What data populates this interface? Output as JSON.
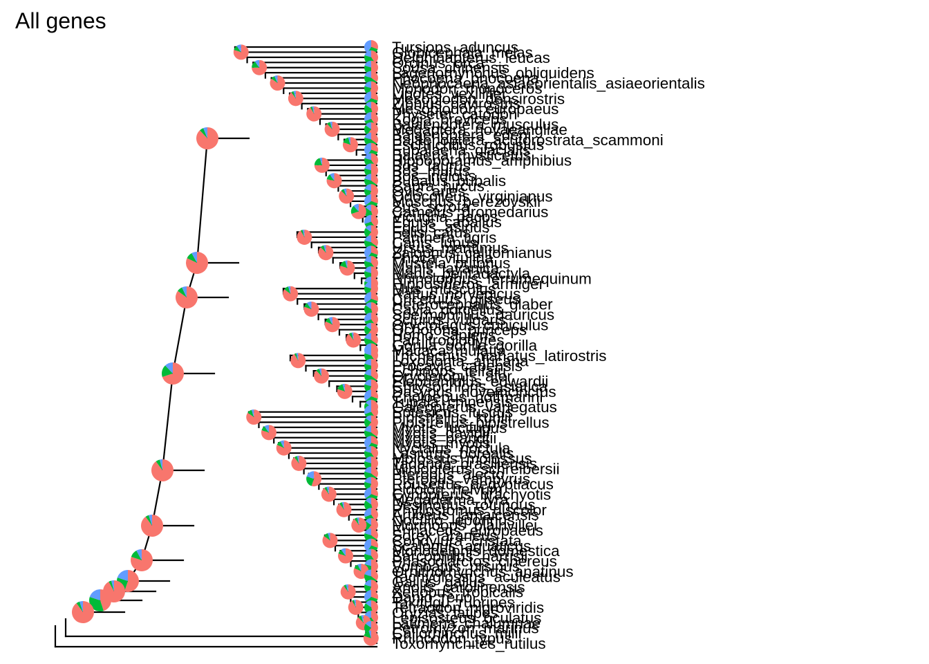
{
  "figure": {
    "title": "All genes",
    "colors": {
      "category_1": "#F8766D",
      "category_2": "#00BA38",
      "category_3": "#619CFF",
      "branch": "#000000",
      "label": "#000000"
    }
  },
  "tips": [
    "Tursiops_aduncus",
    "Globicephala_melas",
    "Delphinapterus_leucas",
    "Orcinus_orca",
    "Sousa_chinensis",
    "Lagenorhynchus_obliquidens",
    "Phocoena_phocoena",
    "Neophocaena_asiaeorientalis_asiaeorientalis",
    "Monodon_monoceros",
    "Lipotes_vexillifer",
    "Mesoplodon_densirostris",
    "Ziphius_cavirostris",
    "Mesoplodon_europaeus",
    "Physeter_catodon",
    "Kogia_breviceps",
    "Balaenoptera_musculus",
    "Megaptera_novaeangliae",
    "Balaenoptera_edeni",
    "Balaenoptera_acutorostrata_scammoni",
    "Eschrichtius_robustus",
    "Eubalaena_glacialis",
    "Balaena_mysticetus",
    "Hippopotamus_amphibius",
    "Bos_taurus",
    "Bos_mutus",
    "Bos_indicus",
    "Bubalus_bubalis",
    "Capra_hircus",
    "Ovis_aries",
    "Odocoileus_virginianus",
    "Moschus_berezovskii",
    "Sus_scrofa",
    "Camelus_dromedarius",
    "Vicugna_pacos",
    "Equus_caballus",
    "Equus_asinus",
    "Felis_catus",
    "Panthera_tigris",
    "Canis_lupus",
    "Ursus_maritimus",
    "Zalophus_californianus",
    "Phoca_vitulina",
    "Mustela_putorius",
    "Manis_javanica",
    "Manis_pentadactyla",
    "Rhinolophus_ferrumequinum",
    "Hipposideros_armiger",
    "Mus_musculus",
    "Rattus_norvegicus",
    "Cricetulus_griseus",
    "Heterocephalus_glaber",
    "Cavia_porcellus",
    "Spermophilus_dauricus",
    "Sciurus_vulgaris",
    "Oryctolagus_cuniculus",
    "Ochotona_princeps",
    "Homo_sapiens",
    "Pan_troglodytes",
    "Gorilla_gorilla_gorilla",
    "Macaca_mulatta",
    "Trichechus_manatus_latirostris",
    "Loxodonta_africana",
    "Procavia_capensis",
    "Echinops_telfairi",
    "Orycteropus_afer",
    "Elephantulus_edwardii",
    "Chrysochloris_asiatica",
    "Dasypus_novemcinctus",
    "Choloepus_hoffmanni",
    "Tupaia_chinensis",
    "Galeopterus_variegatus",
    "Eptesicus_fuscus",
    "Pipistrellus_kuhlii",
    "Pipistrellus_pipistrellus",
    "Myotis_lucifugus",
    "Myotis_davidii",
    "Myotis_brandtii",
    "Myotis_myotis",
    "Nyctalus_noctula",
    "Lasiurus_borealis",
    "Molossus_molossus",
    "Tadarida_brasiliensis",
    "Miniopterus_schreibersii",
    "Pteropus_alecto",
    "Pteropus_vampyrus",
    "Rousettus_aegyptiacus",
    "Eidolon_helvum",
    "Cynopterus_brachyotis",
    "Megaderma_lyra",
    "Desmodus_rotundus",
    "Phyllostomus_discolor",
    "Artibeus_jamaicensis",
    "Noctilio_leporinus",
    "Mormoops_blainvillei",
    "Erinaceus_europaeus",
    "Sorex_araneus",
    "Condylura_cristata",
    "Scalopus_aquaticus",
    "Monodelphis_domestica",
    "Sarcophilus_harrisii",
    "Phascolarctos_cinereus",
    "Vombatus_ursinus",
    "Ornithorhynchus_anatinus",
    "Tachyglossus_aculeatus",
    "Gallus_gallus",
    "Anolis_carolinensis",
    "Xenopus_tropicalis",
    "Danio_rerio",
    "Takifugu_rubripes",
    "Tetraodon_nigroviridis",
    "Oryzias_latipes",
    "Lepisosteus_oculatus",
    "Latimeria_chalumnae",
    "Petromyzon_marinus",
    "Callorhinchus_milii",
    "Rhincodon_typus",
    "Toxorhynchites_rutilus"
  ],
  "node_pies": [
    [
      0.85,
      0.1,
      0.05
    ],
    [
      0.8,
      0.1,
      0.1
    ],
    [
      0.78,
      0.12,
      0.1
    ],
    [
      0.8,
      0.1,
      0.1
    ],
    [
      0.75,
      0.15,
      0.1
    ],
    [
      0.88,
      0.06,
      0.06
    ],
    [
      0.82,
      0.1,
      0.08
    ],
    [
      0.85,
      0.08,
      0.07
    ],
    [
      0.7,
      0.18,
      0.12
    ],
    [
      0.9,
      0.06,
      0.04
    ],
    [
      0.9,
      0.05,
      0.05
    ],
    [
      0.8,
      0.12,
      0.08
    ],
    [
      0.55,
      0.25,
      0.2
    ],
    [
      0.92,
      0.04,
      0.04
    ],
    [
      0.45,
      0.35,
      0.2
    ],
    [
      0.9,
      0.05,
      0.05
    ],
    [
      0.88,
      0.07,
      0.05
    ],
    [
      0.95,
      0.03,
      0.02
    ],
    [
      0.9,
      0.06,
      0.04
    ],
    [
      0.8,
      0.15,
      0.05
    ],
    [
      0.85,
      0.1,
      0.05
    ],
    [
      0.9,
      0.06,
      0.04
    ],
    [
      0.92,
      0.05,
      0.03
    ],
    [
      0.75,
      0.2,
      0.05
    ]
  ],
  "tip_pies": [
    [
      0.3,
      0.3,
      0.4
    ],
    [
      0.4,
      0.4,
      0.2
    ],
    [
      0.5,
      0.3,
      0.2
    ],
    [
      0.35,
      0.45,
      0.2
    ],
    [
      0.55,
      0.25,
      0.2
    ],
    [
      0.3,
      0.35,
      0.35
    ],
    [
      0.45,
      0.4,
      0.15
    ],
    [
      0.4,
      0.3,
      0.3
    ],
    [
      0.6,
      0.25,
      0.15
    ],
    [
      0.35,
      0.45,
      0.2
    ]
  ]
}
